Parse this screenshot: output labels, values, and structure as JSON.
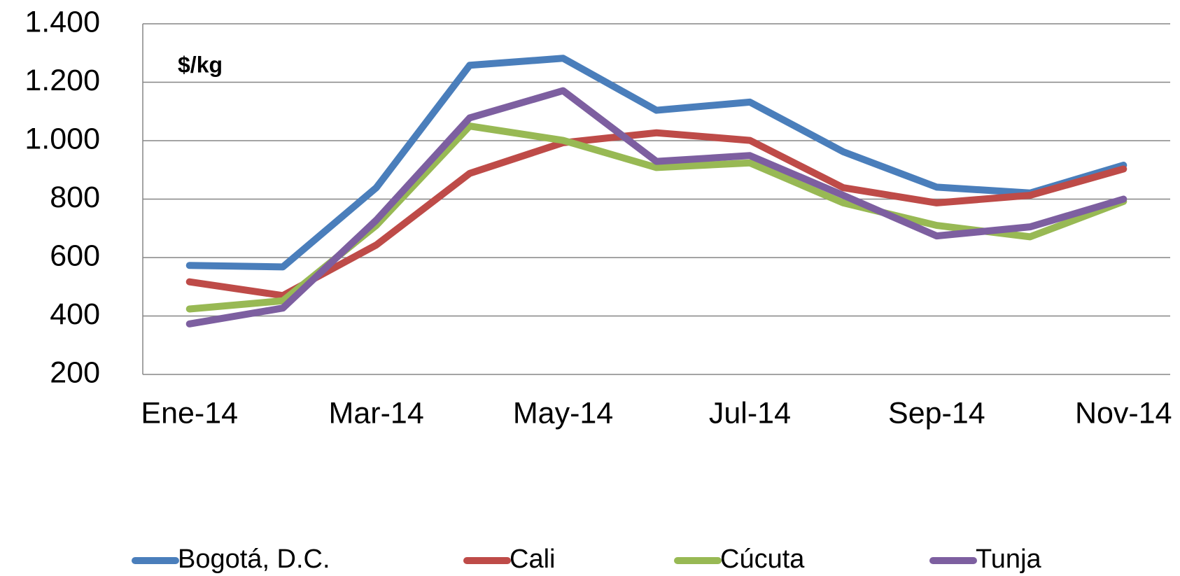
{
  "chart_data": {
    "type": "line",
    "annotation": "$/kg",
    "categories": [
      "Ene-14",
      null,
      "Mar-14",
      null,
      "May-14",
      null,
      "Jul-14",
      null,
      "Sep-14",
      null,
      "Nov-14"
    ],
    "series": [
      {
        "name": "Bogotá, D.C.",
        "color": "#4a7ebb",
        "values": [
          573,
          568,
          839,
          1258,
          1282,
          1104,
          1132,
          962,
          841,
          821,
          916
        ]
      },
      {
        "name": "Cali",
        "color": "#be4b48",
        "values": [
          517,
          470,
          643,
          888,
          993,
          1027,
          1001,
          839,
          787,
          813,
          903
        ]
      },
      {
        "name": "Cúcuta",
        "color": "#98b954",
        "values": [
          424,
          452,
          710,
          1050,
          1001,
          908,
          924,
          787,
          710,
          671,
          792
        ]
      },
      {
        "name": "Tunja",
        "color": "#7d5fa0",
        "values": [
          373,
          427,
          728,
          1078,
          1171,
          929,
          949,
          813,
          674,
          705,
          800
        ]
      }
    ],
    "ylim": [
      200,
      1400
    ],
    "yticks": [
      200,
      400,
      600,
      800,
      {
        "value": 1000,
        "label": "1.000"
      },
      {
        "value": 1200,
        "label": "1.200"
      },
      {
        "value": 1400,
        "label": "1.400"
      }
    ],
    "grid": true,
    "legend": "bottom"
  }
}
